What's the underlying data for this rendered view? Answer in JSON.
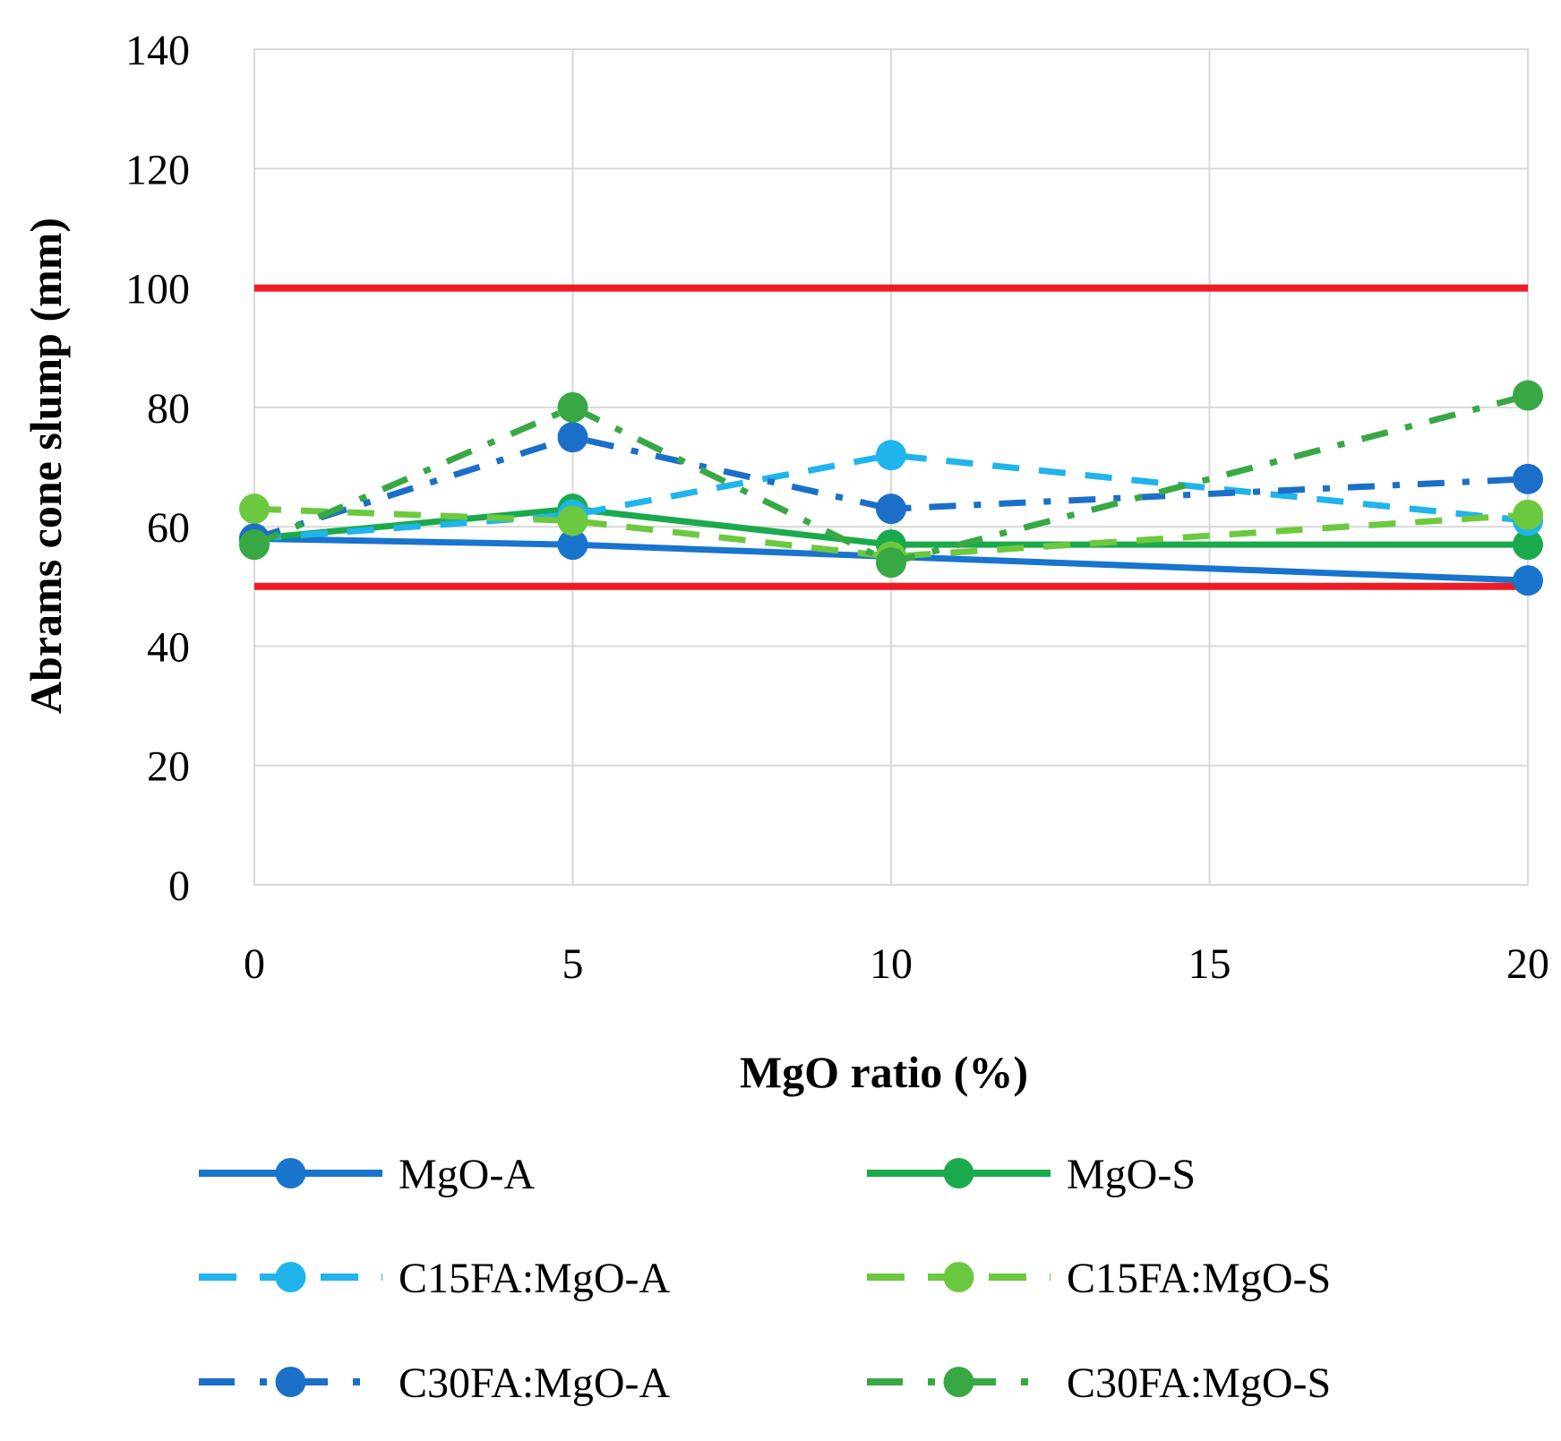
{
  "chart_data": {
    "type": "line",
    "xlabel": "MgO ratio (%)",
    "ylabel": "Abrams cone slump (mm)",
    "x_ticks": [
      0,
      5,
      10,
      15,
      20
    ],
    "y_ticks": [
      0,
      20,
      40,
      60,
      80,
      100,
      120,
      140
    ],
    "xlim": [
      0,
      20
    ],
    "ylim": [
      0,
      140
    ],
    "grid": true,
    "legend_position": "bottom",
    "x": [
      0,
      5,
      10,
      20
    ],
    "series": [
      {
        "name": "MgO-A",
        "values": [
          58,
          57,
          55,
          51
        ],
        "color": "#1874CD",
        "style": "solid"
      },
      {
        "name": "MgO-S",
        "values": [
          58,
          63,
          57,
          57
        ],
        "color": "#1AAA4B",
        "style": "solid"
      },
      {
        "name": "C15FA:MgO-A",
        "values": [
          58,
          62,
          72,
          61
        ],
        "color": "#1FB4EB",
        "style": "dash"
      },
      {
        "name": "C15FA:MgO-S",
        "values": [
          63,
          61,
          55,
          62
        ],
        "color": "#6CC93F",
        "style": "dash"
      },
      {
        "name": "C30FA:MgO-A",
        "values": [
          58,
          75,
          63,
          68
        ],
        "color": "#1B6FC9",
        "style": "dashdot"
      },
      {
        "name": "C30FA:MgO-S",
        "values": [
          57,
          80,
          54,
          82
        ],
        "color": "#38A845",
        "style": "dashdot"
      }
    ],
    "reference_lines": [
      {
        "value": 100,
        "color": "#EE1C25"
      },
      {
        "value": 50,
        "color": "#EE1C25"
      }
    ]
  }
}
